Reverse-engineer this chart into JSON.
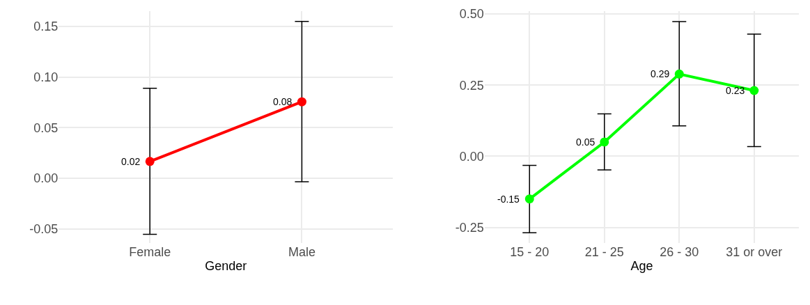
{
  "chart_data": [
    {
      "type": "line",
      "xlabel": "Gender",
      "categories": [
        "Female",
        "Male"
      ],
      "ylim": [
        -0.064,
        0.165
      ],
      "yticks": [
        {
          "value": -0.05,
          "label": "-0.05"
        },
        {
          "value": 0,
          "label": "0.00"
        },
        {
          "value": 0.05,
          "label": "0.05"
        },
        {
          "value": 0.1,
          "label": "0.10"
        },
        {
          "value": 0.15,
          "label": "0.15"
        }
      ],
      "grid": true,
      "marker": "circle",
      "line_style": "solid",
      "series": [
        {
          "color": "#ff0000",
          "values": [
            0.0166,
            0.0755
          ],
          "errors": [
            [
              -0.0553,
              0.0889
            ],
            [
              -0.0034,
              0.1548
            ]
          ],
          "value_labels": [
            "0.02",
            "0.08"
          ]
        }
      ]
    },
    {
      "type": "line",
      "xlabel": "Age",
      "categories": [
        "15 - 20",
        "21 - 25",
        "26 - 30",
        "31 or over"
      ],
      "ylim": [
        -0.305,
        0.51
      ],
      "yticks": [
        {
          "value": -0.25,
          "label": "-0.25"
        },
        {
          "value": 0,
          "label": "0.00"
        },
        {
          "value": 0.25,
          "label": "0.25"
        },
        {
          "value": 0.5,
          "label": "0.50"
        }
      ],
      "grid": true,
      "marker": "circle",
      "line_style": "solid",
      "series": [
        {
          "color": "#00ff00",
          "values": [
            -0.15,
            0.05,
            0.289,
            0.231
          ],
          "errors": [
            [
              -0.269,
              -0.032
            ],
            [
              -0.048,
              0.149
            ],
            [
              0.107,
              0.473
            ],
            [
              0.034,
              0.429
            ]
          ],
          "value_labels": [
            "-0.15",
            "0.05",
            "0.29",
            "0.23"
          ]
        }
      ]
    }
  ]
}
